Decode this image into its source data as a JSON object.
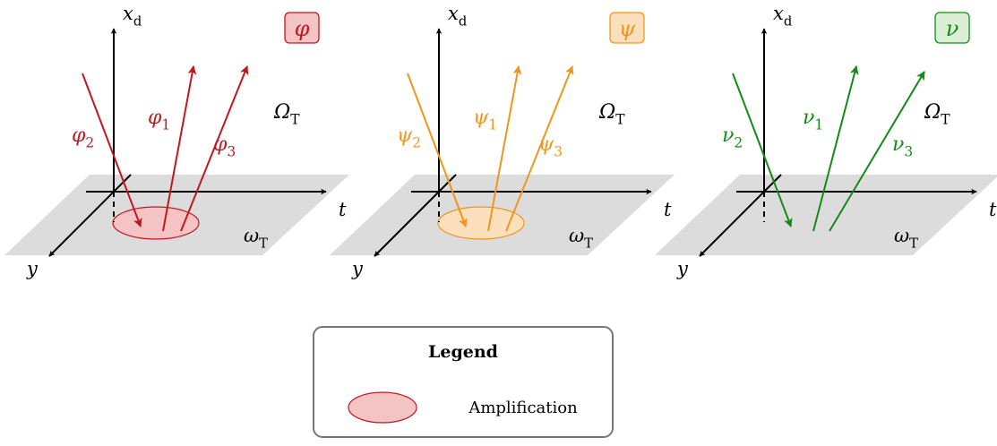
{
  "panels": [
    {
      "id": "phi",
      "color": "#c0181f",
      "fill": "#f4c3c3",
      "badge": "φ",
      "vertical_axis": {
        "main": "x",
        "sub": "d"
      },
      "horizontal_axis": "t",
      "depth_axis": "y",
      "domain_label": {
        "main": "Ω",
        "sub": "T"
      },
      "plane_label": {
        "main": "ω",
        "sub": "T"
      },
      "rays": [
        {
          "main": "φ",
          "sub": "2"
        },
        {
          "main": "φ",
          "sub": "1"
        },
        {
          "main": "φ",
          "sub": "3"
        }
      ],
      "amplified": true
    },
    {
      "id": "psi",
      "color": "#f0961c",
      "fill": "#fce0bd",
      "badge": "ψ",
      "vertical_axis": {
        "main": "x",
        "sub": "d"
      },
      "horizontal_axis": "t",
      "depth_axis": "y",
      "domain_label": {
        "main": "Ω",
        "sub": "T"
      },
      "plane_label": {
        "main": "ω",
        "sub": "T"
      },
      "rays": [
        {
          "main": "ψ",
          "sub": "2"
        },
        {
          "main": "ψ",
          "sub": "1"
        },
        {
          "main": "ψ",
          "sub": "3"
        }
      ],
      "amplified": true
    },
    {
      "id": "nu",
      "color": "#158a18",
      "fill": "#dcefd6",
      "badge": "ν",
      "vertical_axis": {
        "main": "x",
        "sub": "d"
      },
      "horizontal_axis": "t",
      "depth_axis": "y",
      "domain_label": {
        "main": "Ω",
        "sub": "T"
      },
      "plane_label": {
        "main": "ω",
        "sub": "T"
      },
      "rays": [
        {
          "main": "ν",
          "sub": "2"
        },
        {
          "main": "ν",
          "sub": "1"
        },
        {
          "main": "ν",
          "sub": "3"
        }
      ],
      "amplified": false
    }
  ],
  "legend": {
    "title": "Legend",
    "items": [
      {
        "label": "Amplification",
        "color": "#c0181f",
        "fill": "#f4c3c3"
      }
    ]
  }
}
